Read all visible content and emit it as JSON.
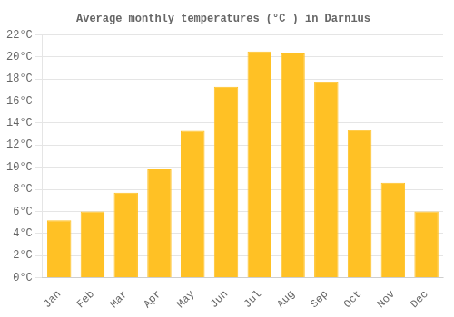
{
  "chart_data": {
    "type": "bar",
    "title": "Average monthly temperatures (°C ) in Darnius",
    "categories": [
      "Jan",
      "Feb",
      "Mar",
      "Apr",
      "May",
      "Jun",
      "Jul",
      "Aug",
      "Sep",
      "Oct",
      "Nov",
      "Dec"
    ],
    "values": [
      5.2,
      6.0,
      7.7,
      9.8,
      13.3,
      17.3,
      20.5,
      20.3,
      17.7,
      13.4,
      8.6,
      6.0
    ],
    "color": "#FFC125",
    "ylim": [
      0,
      22
    ],
    "yticks": [
      {
        "value": 0,
        "label": "0°C"
      },
      {
        "value": 2,
        "label": "2°C"
      },
      {
        "value": 4,
        "label": "4°C"
      },
      {
        "value": 6,
        "label": "6°C"
      },
      {
        "value": 8,
        "label": "8°C"
      },
      {
        "value": 10,
        "label": "10°C"
      },
      {
        "value": 12,
        "label": "12°C"
      },
      {
        "value": 14,
        "label": "14°C"
      },
      {
        "value": 16,
        "label": "16°C"
      },
      {
        "value": 18,
        "label": "18°C"
      },
      {
        "value": 20,
        "label": "20°C"
      },
      {
        "value": 22,
        "label": "22°C"
      }
    ],
    "grid": true
  }
}
